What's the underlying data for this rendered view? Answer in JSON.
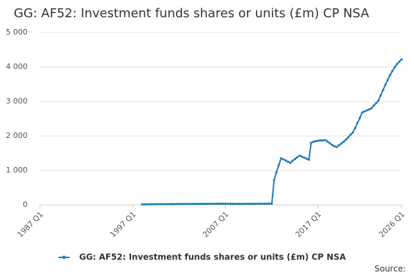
{
  "chart_data": {
    "type": "line",
    "title": "GG: AF52: Investment funds shares or units (£m) CP NSA",
    "source": "Source:",
    "categories": [
      "1987 Q1",
      null,
      null,
      null,
      null,
      null,
      null,
      null,
      null,
      null,
      null,
      null,
      null,
      null,
      null,
      null,
      null,
      null,
      null,
      null,
      null,
      null,
      null,
      null,
      null,
      null,
      null,
      null,
      null,
      null,
      null,
      null,
      null,
      null,
      null,
      null,
      null,
      null,
      null,
      null,
      "1997 Q1",
      null,
      null,
      null,
      null,
      null,
      null,
      null,
      null,
      null,
      null,
      null,
      null,
      null,
      null,
      null,
      null,
      null,
      null,
      null,
      null,
      null,
      null,
      null,
      null,
      null,
      null,
      null,
      null,
      null,
      null,
      null,
      null,
      null,
      null,
      null,
      null,
      null,
      null,
      null,
      "2007 Q1",
      null,
      null,
      null,
      null,
      null,
      null,
      null,
      null,
      null,
      null,
      null,
      null,
      null,
      null,
      null,
      null,
      null,
      null,
      null,
      null,
      null,
      null,
      null,
      null,
      null,
      null,
      null,
      null,
      null,
      null,
      null,
      null,
      null,
      null,
      null,
      null,
      null,
      null,
      null,
      "2017 Q1",
      null,
      null,
      null,
      null,
      null,
      null,
      null,
      null,
      null,
      null,
      null,
      null,
      null,
      null,
      null,
      null,
      null,
      null,
      null,
      null,
      null,
      null,
      null,
      null,
      null,
      null,
      null,
      null,
      null,
      null,
      null,
      null,
      null,
      null,
      null,
      "2026 Q1"
    ],
    "series": [
      {
        "name": "GG: AF52: Investment funds shares or units (£m) CP NSA",
        "color": "#1a7bb5",
        "values": [
          null,
          null,
          null,
          null,
          null,
          null,
          null,
          null,
          null,
          null,
          null,
          null,
          null,
          null,
          null,
          null,
          null,
          null,
          null,
          null,
          null,
          null,
          null,
          null,
          null,
          null,
          null,
          null,
          null,
          null,
          null,
          null,
          null,
          null,
          null,
          null,
          null,
          null,
          null,
          null,
          null,
          null,
          null,
          null,
          15,
          17,
          18,
          19,
          20,
          21,
          22,
          22,
          23,
          23,
          24,
          24,
          25,
          25,
          26,
          26,
          27,
          27,
          28,
          28,
          29,
          29,
          30,
          30,
          31,
          31,
          32,
          32,
          33,
          33,
          34,
          34,
          35,
          35,
          36,
          36,
          35,
          34,
          33,
          32,
          31,
          30,
          30,
          31,
          31,
          32,
          32,
          33,
          33,
          34,
          34,
          35,
          35,
          36,
          36,
          37,
          38,
          720,
          950,
          1150,
          1350,
          1320,
          1290,
          1250,
          1220,
          1280,
          1330,
          1380,
          1430,
          1400,
          1370,
          1340,
          1310,
          1800,
          1830,
          1850,
          1860,
          1870,
          1870,
          1880,
          1840,
          1790,
          1740,
          1700,
          1680,
          1730,
          1780,
          1830,
          1890,
          1960,
          2040,
          2100,
          2230,
          2380,
          2520,
          2680,
          2710,
          2740,
          2770,
          2800,
          2880,
          2950,
          3020,
          3180,
          3330,
          3480,
          3620,
          3760,
          3880,
          3990,
          4080,
          4150,
          4220
        ]
      }
    ],
    "ylim": [
      0,
      5000
    ],
    "yticks": [
      0,
      {
        "value": 1000,
        "label": "1 000"
      },
      {
        "value": 2000,
        "label": "2 000"
      },
      {
        "value": 3000,
        "label": "3 000"
      },
      {
        "value": 4000,
        "label": "4 000"
      },
      {
        "value": 5000,
        "label": "5 000"
      }
    ],
    "grid": true
  }
}
